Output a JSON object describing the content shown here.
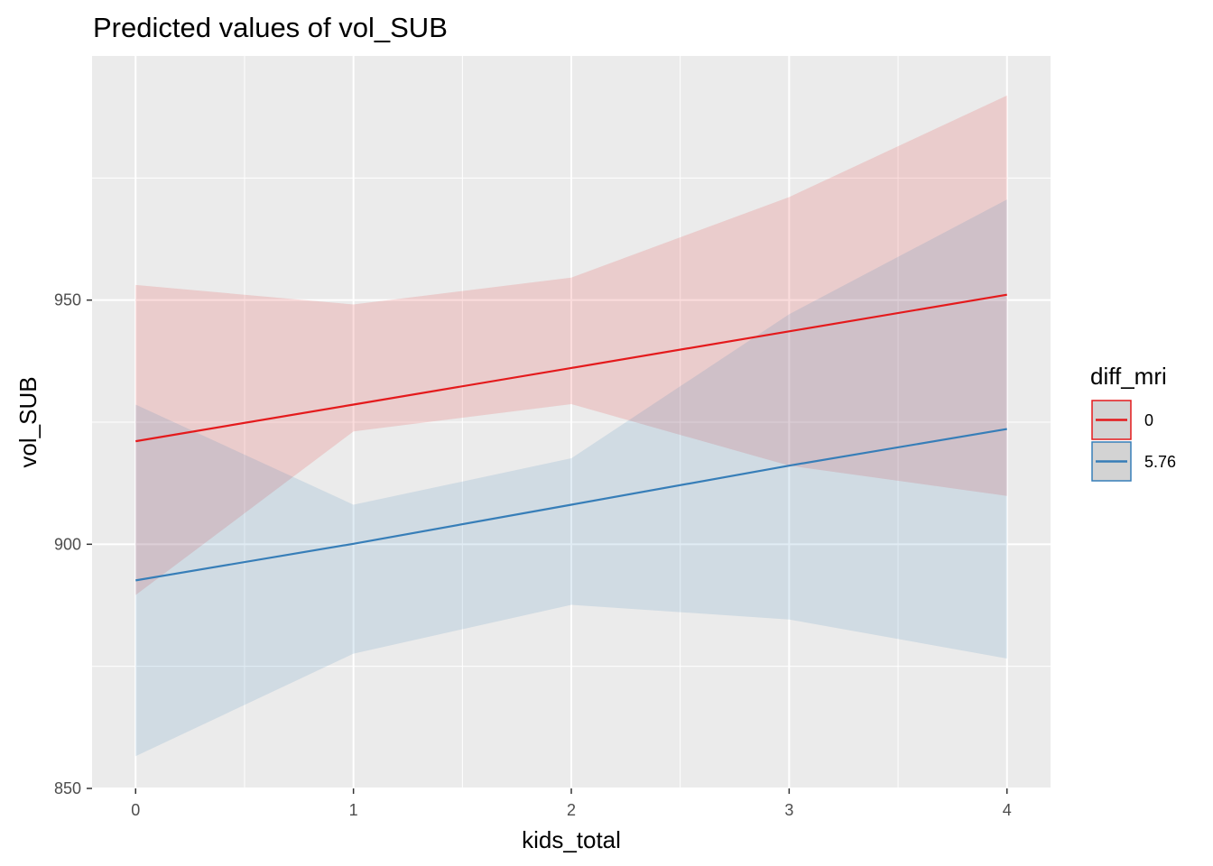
{
  "chart_data": {
    "type": "line",
    "title": "Predicted values of vol_SUB",
    "xlabel": "kids_total",
    "ylabel": "vol_SUB",
    "xlim": [
      -0.2,
      4.2
    ],
    "ylim": [
      850,
      1000
    ],
    "x_ticks": [
      0,
      1,
      2,
      3,
      4
    ],
    "x_tick_labels": [
      "0",
      "1",
      "2",
      "3",
      "4"
    ],
    "y_ticks": [
      850,
      900,
      950
    ],
    "y_tick_labels": [
      "850",
      "900",
      "950"
    ],
    "grid": true,
    "legend": {
      "title": "diff_mri",
      "position": "right"
    },
    "x": [
      0,
      1,
      2,
      3,
      4
    ],
    "series": [
      {
        "name": "0",
        "color": "#e41a1c",
        "values": [
          921.1,
          928.6,
          936.1,
          943.6,
          951.1
        ],
        "ci_low": [
          889.6,
          923.1,
          928.7,
          916.1,
          909.9
        ],
        "ci_high": [
          953.1,
          949.1,
          954.6,
          971.1,
          991.9
        ]
      },
      {
        "name": "5.76",
        "color": "#377eb8",
        "values": [
          892.6,
          900.1,
          908.1,
          916.1,
          923.6
        ],
        "ci_low": [
          856.6,
          877.6,
          887.6,
          884.6,
          876.6
        ],
        "ci_high": [
          928.6,
          908.1,
          917.6,
          947.1,
          970.6
        ]
      }
    ]
  }
}
